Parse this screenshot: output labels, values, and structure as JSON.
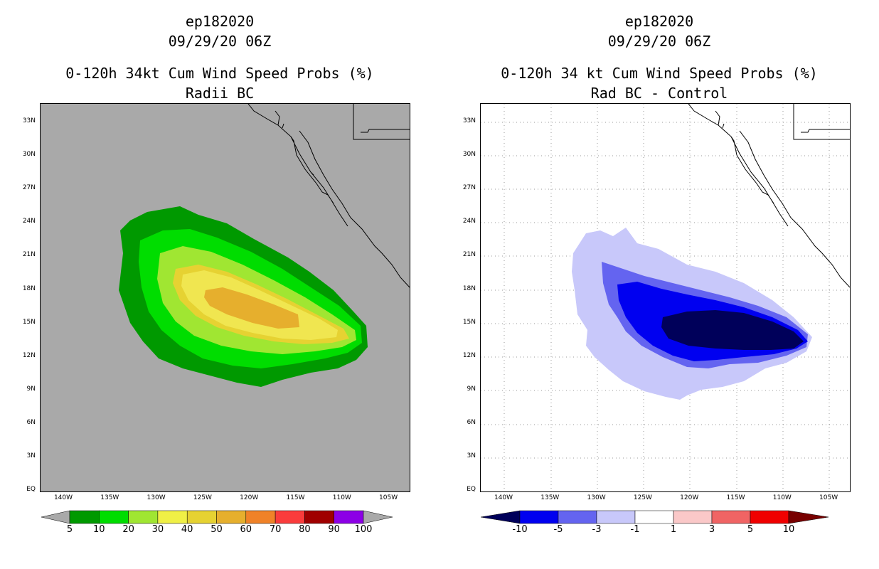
{
  "left_panel": {
    "storm_id": "ep182020",
    "datetime": "09/29/20 06Z",
    "title_line1": "0-120h 34kt Cum Wind Speed Probs (%)",
    "title_line2": "Radii BC",
    "lat_labels": [
      "33N",
      "30N",
      "27N",
      "24N",
      "21N",
      "18N",
      "15N",
      "12N",
      "9N",
      "6N",
      "3N",
      "EQ"
    ],
    "lon_labels": [
      "140W",
      "135W",
      "130W",
      "125W",
      "120W",
      "115W",
      "110W",
      "105W"
    ],
    "colorbar_labels": [
      "5",
      "10",
      "20",
      "30",
      "40",
      "50",
      "60",
      "70",
      "80",
      "90",
      "100"
    ],
    "colorbar_colors": [
      "#009900",
      "#00dd00",
      "#a0e632",
      "#f0f046",
      "#e6d232",
      "#e6af2d",
      "#f08228",
      "#fa3c3c",
      "#a00000",
      "#8c00e6"
    ]
  },
  "right_panel": {
    "storm_id": "ep182020",
    "datetime": "09/29/20 06Z",
    "title_line1": "0-120h 34 kt Cum Wind Speed Probs (%)",
    "title_line2": "Rad BC - Control",
    "lat_labels": [
      "33N",
      "30N",
      "27N",
      "24N",
      "21N",
      "18N",
      "15N",
      "12N",
      "9N",
      "6N",
      "3N",
      "EQ"
    ],
    "lon_labels": [
      "140W",
      "135W",
      "130W",
      "125W",
      "120W",
      "115W",
      "110W",
      "105W"
    ],
    "colorbar_labels": [
      "-10",
      "-5",
      "-3",
      "-1",
      "1",
      "3",
      "5",
      "10"
    ],
    "colorbar_colors": [
      "#00005a",
      "#0000f0",
      "#6464f0",
      "#c8c8fa",
      "#ffffff",
      "#fac8c8",
      "#f06464",
      "#f00000",
      "#780000"
    ]
  }
}
